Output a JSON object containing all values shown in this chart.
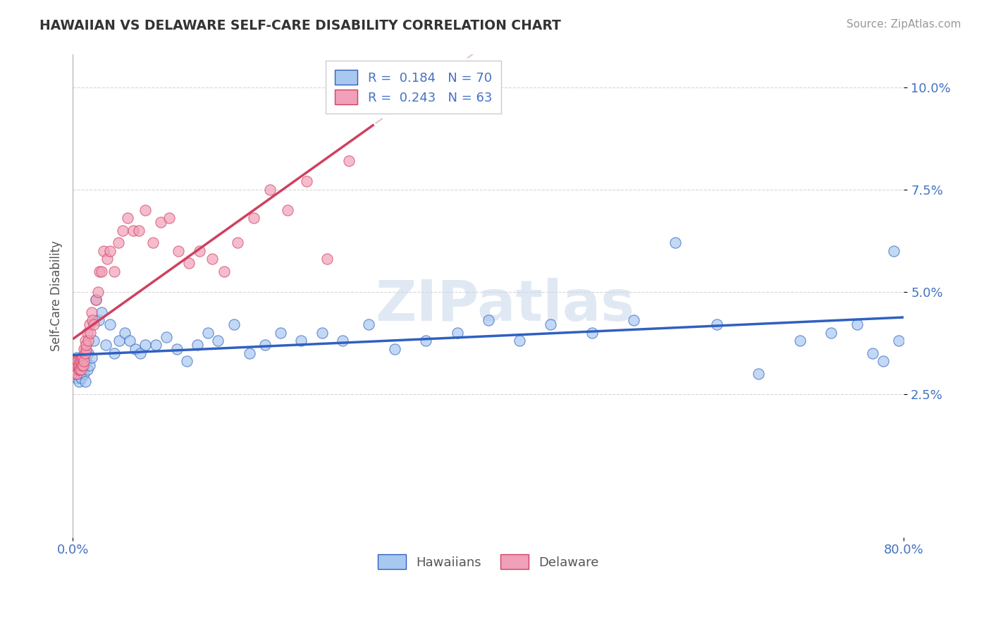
{
  "title": "HAWAIIAN VS DELAWARE SELF-CARE DISABILITY CORRELATION CHART",
  "source": "Source: ZipAtlas.com",
  "ylabel": "Self-Care Disability",
  "yticks": [
    "2.5%",
    "5.0%",
    "7.5%",
    "10.0%"
  ],
  "ytick_vals": [
    0.025,
    0.05,
    0.075,
    0.1
  ],
  "xlim": [
    0.0,
    0.8
  ],
  "ylim": [
    -0.01,
    0.108
  ],
  "legend_r_hawaiians": "R =  0.184",
  "legend_n_hawaiians": "N = 70",
  "legend_r_delaware": "R =  0.243",
  "legend_n_delaware": "N = 63",
  "color_hawaiians": "#A8C8F0",
  "color_delaware": "#F0A0B8",
  "color_trendline_hawaiians": "#3060C0",
  "color_trendline_delaware": "#D04060",
  "background_color": "#FFFFFF",
  "scatter_hawaiians_x": [
    0.001,
    0.002,
    0.002,
    0.003,
    0.003,
    0.004,
    0.004,
    0.005,
    0.005,
    0.006,
    0.006,
    0.007,
    0.007,
    0.008,
    0.008,
    0.009,
    0.01,
    0.011,
    0.012,
    0.013,
    0.014,
    0.015,
    0.016,
    0.018,
    0.02,
    0.022,
    0.025,
    0.028,
    0.032,
    0.036,
    0.04,
    0.045,
    0.05,
    0.055,
    0.06,
    0.065,
    0.07,
    0.08,
    0.09,
    0.1,
    0.11,
    0.12,
    0.13,
    0.14,
    0.155,
    0.17,
    0.185,
    0.2,
    0.22,
    0.24,
    0.26,
    0.285,
    0.31,
    0.34,
    0.37,
    0.4,
    0.43,
    0.46,
    0.5,
    0.54,
    0.58,
    0.62,
    0.66,
    0.7,
    0.73,
    0.755,
    0.77,
    0.78,
    0.79,
    0.795
  ],
  "scatter_hawaiians_y": [
    0.031,
    0.03,
    0.032,
    0.031,
    0.033,
    0.029,
    0.034,
    0.03,
    0.032,
    0.033,
    0.028,
    0.031,
    0.03,
    0.033,
    0.029,
    0.032,
    0.031,
    0.03,
    0.028,
    0.033,
    0.031,
    0.035,
    0.032,
    0.034,
    0.038,
    0.048,
    0.043,
    0.045,
    0.037,
    0.042,
    0.035,
    0.038,
    0.04,
    0.038,
    0.036,
    0.035,
    0.037,
    0.037,
    0.039,
    0.036,
    0.033,
    0.037,
    0.04,
    0.038,
    0.042,
    0.035,
    0.037,
    0.04,
    0.038,
    0.04,
    0.038,
    0.042,
    0.036,
    0.038,
    0.04,
    0.043,
    0.038,
    0.042,
    0.04,
    0.043,
    0.062,
    0.042,
    0.03,
    0.038,
    0.04,
    0.042,
    0.035,
    0.033,
    0.06,
    0.038
  ],
  "scatter_delaware_x": [
    0.001,
    0.001,
    0.002,
    0.002,
    0.003,
    0.003,
    0.004,
    0.004,
    0.005,
    0.005,
    0.006,
    0.006,
    0.007,
    0.007,
    0.008,
    0.008,
    0.009,
    0.009,
    0.01,
    0.01,
    0.011,
    0.011,
    0.012,
    0.012,
    0.013,
    0.013,
    0.014,
    0.015,
    0.016,
    0.017,
    0.018,
    0.019,
    0.02,
    0.022,
    0.024,
    0.026,
    0.028,
    0.03,
    0.033,
    0.036,
    0.04,
    0.044,
    0.048,
    0.053,
    0.058,
    0.064,
    0.07,
    0.077,
    0.085,
    0.093,
    0.102,
    0.112,
    0.122,
    0.134,
    0.146,
    0.159,
    0.174,
    0.19,
    0.207,
    0.225,
    0.245,
    0.266,
    0.289
  ],
  "scatter_delaware_y": [
    0.03,
    0.032,
    0.031,
    0.033,
    0.031,
    0.032,
    0.033,
    0.03,
    0.032,
    0.033,
    0.031,
    0.032,
    0.033,
    0.031,
    0.033,
    0.031,
    0.032,
    0.034,
    0.034,
    0.032,
    0.033,
    0.036,
    0.038,
    0.035,
    0.036,
    0.037,
    0.04,
    0.038,
    0.042,
    0.04,
    0.045,
    0.043,
    0.042,
    0.048,
    0.05,
    0.055,
    0.055,
    0.06,
    0.058,
    0.06,
    0.055,
    0.062,
    0.065,
    0.068,
    0.065,
    0.065,
    0.07,
    0.062,
    0.067,
    0.068,
    0.06,
    0.057,
    0.06,
    0.058,
    0.055,
    0.062,
    0.068,
    0.075,
    0.07,
    0.077,
    0.058,
    0.082,
    0.095
  ]
}
